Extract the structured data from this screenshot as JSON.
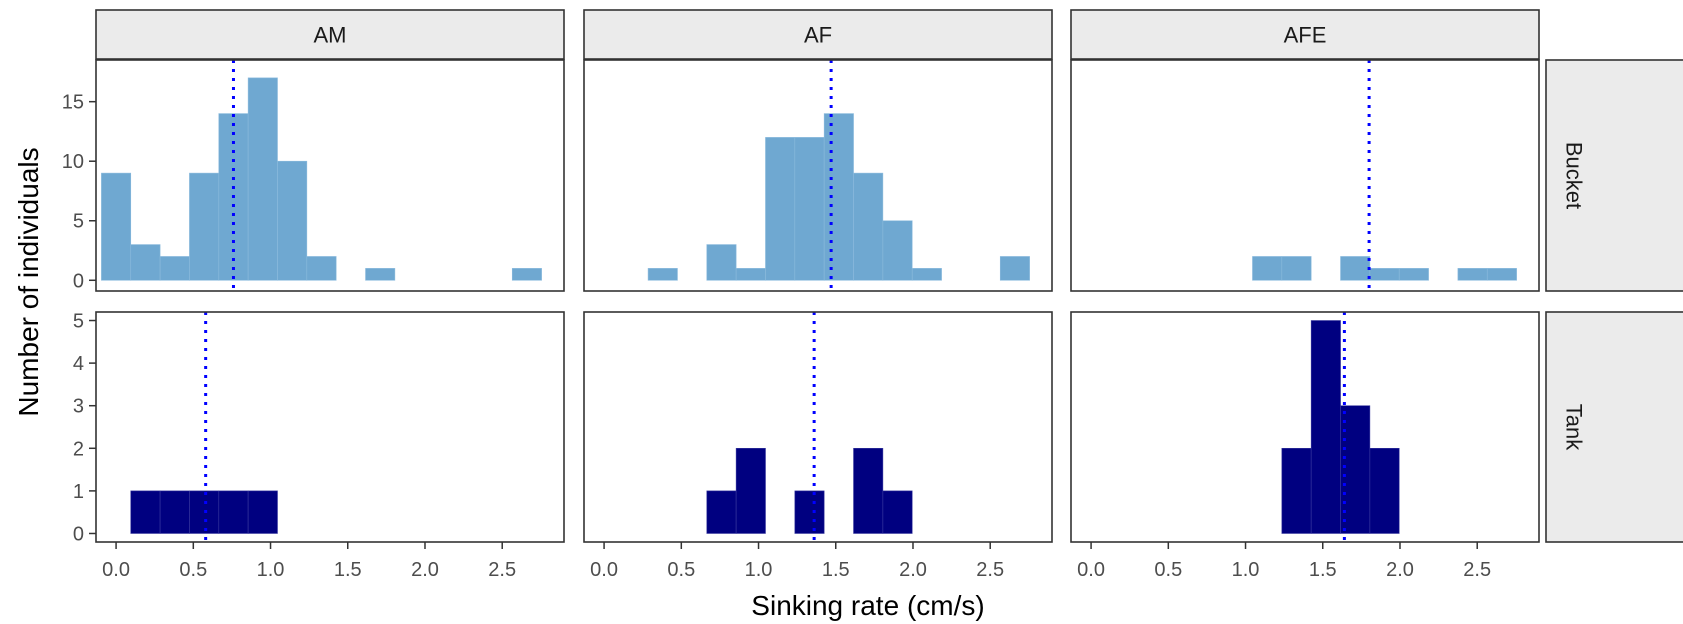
{
  "chart_data": {
    "type": "bar",
    "subtype": "faceted-histogram",
    "xlabel": "Sinking rate (cm/s)",
    "ylabel": "Number of individuals",
    "bin_width": 0.19,
    "x_ticks": [
      0.0,
      0.5,
      1.0,
      1.5,
      2.0,
      2.5
    ],
    "x_tick_labels": [
      "0.0",
      "0.5",
      "1.0",
      "1.5",
      "2.0",
      "2.5"
    ],
    "xlim": [
      -0.13,
      2.9
    ],
    "col_facets": [
      "AM",
      "AF",
      "AFE"
    ],
    "row_facets": [
      {
        "label": "Bucket",
        "ylim": [
          -0.9,
          18.5
        ],
        "y_ticks": [
          0,
          5,
          10,
          15
        ],
        "y_tick_labels": [
          "0",
          "5",
          "10",
          "15"
        ],
        "fill": "#6FA8D1"
      },
      {
        "label": "Tank",
        "ylim": [
          -0.2,
          5.2
        ],
        "y_ticks": [
          0,
          1,
          2,
          3,
          4,
          5
        ],
        "y_tick_labels": [
          "0",
          "1",
          "2",
          "3",
          "4",
          "5"
        ],
        "fill": "#000080"
      }
    ],
    "mean_line_color": "#0000FF",
    "panels": [
      {
        "row": 0,
        "col": 0,
        "mean": 0.76,
        "bins": [
          {
            "x": 0.0,
            "count": 9
          },
          {
            "x": 0.19,
            "count": 3
          },
          {
            "x": 0.38,
            "count": 2
          },
          {
            "x": 0.57,
            "count": 9
          },
          {
            "x": 0.76,
            "count": 14
          },
          {
            "x": 0.95,
            "count": 17
          },
          {
            "x": 1.14,
            "count": 10
          },
          {
            "x": 1.33,
            "count": 2
          },
          {
            "x": 1.71,
            "count": 1
          },
          {
            "x": 2.66,
            "count": 1
          }
        ]
      },
      {
        "row": 0,
        "col": 1,
        "mean": 1.47,
        "bins": [
          {
            "x": 0.38,
            "count": 1
          },
          {
            "x": 0.76,
            "count": 3
          },
          {
            "x": 0.95,
            "count": 1
          },
          {
            "x": 1.14,
            "count": 12
          },
          {
            "x": 1.33,
            "count": 12
          },
          {
            "x": 1.52,
            "count": 14
          },
          {
            "x": 1.71,
            "count": 9
          },
          {
            "x": 1.9,
            "count": 5
          },
          {
            "x": 2.09,
            "count": 1
          },
          {
            "x": 2.66,
            "count": 2
          }
        ]
      },
      {
        "row": 0,
        "col": 2,
        "mean": 1.8,
        "bins": [
          {
            "x": 1.14,
            "count": 2
          },
          {
            "x": 1.33,
            "count": 2
          },
          {
            "x": 1.71,
            "count": 2
          },
          {
            "x": 1.9,
            "count": 1
          },
          {
            "x": 2.09,
            "count": 1
          },
          {
            "x": 2.47,
            "count": 1
          },
          {
            "x": 2.66,
            "count": 1
          }
        ]
      },
      {
        "row": 1,
        "col": 0,
        "mean": 0.58,
        "bins": [
          {
            "x": 0.19,
            "count": 1
          },
          {
            "x": 0.38,
            "count": 1
          },
          {
            "x": 0.57,
            "count": 1
          },
          {
            "x": 0.76,
            "count": 1
          },
          {
            "x": 0.95,
            "count": 1
          }
        ]
      },
      {
        "row": 1,
        "col": 1,
        "mean": 1.36,
        "bins": [
          {
            "x": 0.76,
            "count": 1
          },
          {
            "x": 0.95,
            "count": 2
          },
          {
            "x": 1.33,
            "count": 1
          },
          {
            "x": 1.71,
            "count": 2
          },
          {
            "x": 1.9,
            "count": 1
          }
        ]
      },
      {
        "row": 1,
        "col": 2,
        "mean": 1.64,
        "bins": [
          {
            "x": 1.33,
            "count": 2
          },
          {
            "x": 1.52,
            "count": 5
          },
          {
            "x": 1.71,
            "count": 3
          },
          {
            "x": 1.9,
            "count": 2
          }
        ]
      }
    ]
  }
}
